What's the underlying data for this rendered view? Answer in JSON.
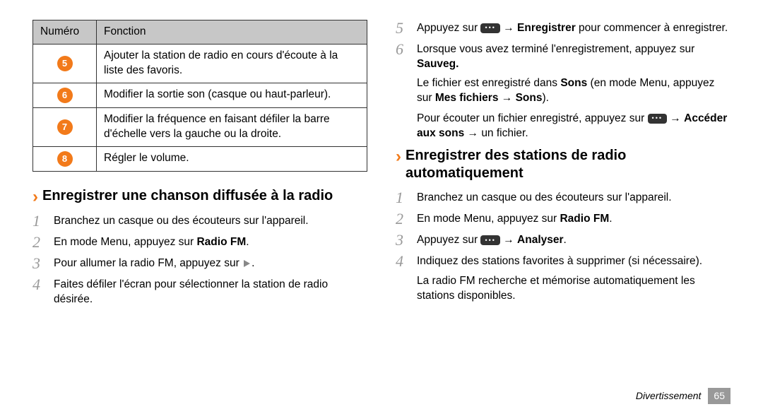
{
  "table": {
    "header_num": "Numéro",
    "header_func": "Fonction",
    "rows": [
      {
        "n": "5",
        "t": "Ajouter la station de radio en cours d'écoute à la liste des favoris."
      },
      {
        "n": "6",
        "t": "Modifier la sortie son (casque ou haut-parleur)."
      },
      {
        "n": "7",
        "t": "Modifier la fréquence en faisant défiler la barre d'échelle vers\nla gauche ou la droite."
      },
      {
        "n": "8",
        "t": "Régler le volume."
      }
    ]
  },
  "heading1": "Enregistrer une chanson diffusée à la radio",
  "steps1": [
    "Branchez un casque ou des écouteurs sur l'appareil.",
    "En mode Menu, appuyez sur <b>Radio FM</b>.",
    "Pour allumer la radio FM, appuyez sur",
    "Faites défiler l'écran pour sélectionner la station de radio désirée."
  ],
  "steps2": [
    {
      "n": "5",
      "pre": "Appuyez sur",
      "post": " → <b>Enregistrer</b> pour commencer à enregistrer."
    },
    {
      "n": "6",
      "pre": "",
      "post": "Lorsque vous avez terminé l'enregistrement, appuyez sur <b>Sauveg.</b>"
    }
  ],
  "para1_a": "Le fichier est enregistré dans <b>Sons</b> (en mode Menu, appuyez sur <b>Mes fichiers</b> → <b>Sons</b>).",
  "para2_pre": "Pour écouter un fichier enregistré, appuyez sur",
  "para2_post": " → <b>Accéder aux sons</b> → un fichier.",
  "heading2": "Enregistrer des stations de radio automatiquement",
  "steps3": [
    {
      "n": "1",
      "pre": "",
      "post": "Branchez un casque ou des écouteurs sur l'appareil."
    },
    {
      "n": "2",
      "pre": "",
      "post": "En mode Menu, appuyez sur <b>Radio FM</b>."
    },
    {
      "n": "3",
      "pre": "Appuyez sur",
      "post": " → <b>Analyser</b>."
    },
    {
      "n": "4",
      "pre": "",
      "post": "Indiquez des stations favorites à supprimer (si nécessaire)."
    }
  ],
  "para3": "La radio FM recherche et mémorise automatiquement les stations disponibles.",
  "footer_label": "Divertissement",
  "page_num": "65"
}
